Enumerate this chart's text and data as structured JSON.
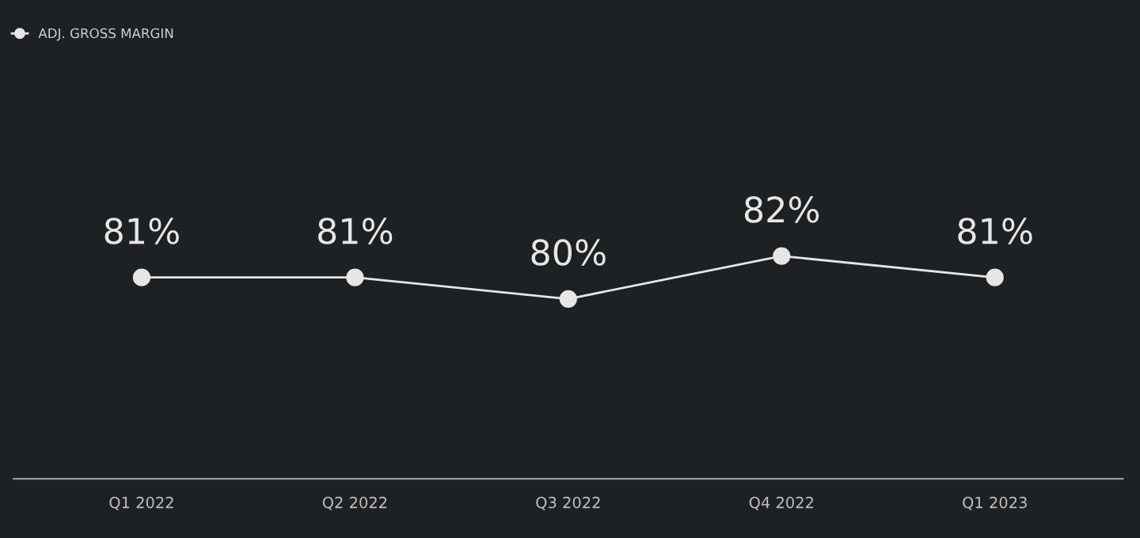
{
  "chart_data": {
    "type": "line",
    "categories": [
      "Q1 2022",
      "Q2 2022",
      "Q3 2022",
      "Q4 2022",
      "Q1 2023"
    ],
    "series": [
      {
        "name": "ADJ. GROSS MARGIN",
        "color": "#e6e6e6",
        "values": [
          81,
          81,
          80,
          82,
          81
        ],
        "value_labels": [
          "81%",
          "81%",
          "80%",
          "82%",
          "81%"
        ]
      }
    ],
    "tick_labels": "x",
    "grid": false,
    "legend": "top left",
    "marker": "circle",
    "line_style": "solid"
  }
}
